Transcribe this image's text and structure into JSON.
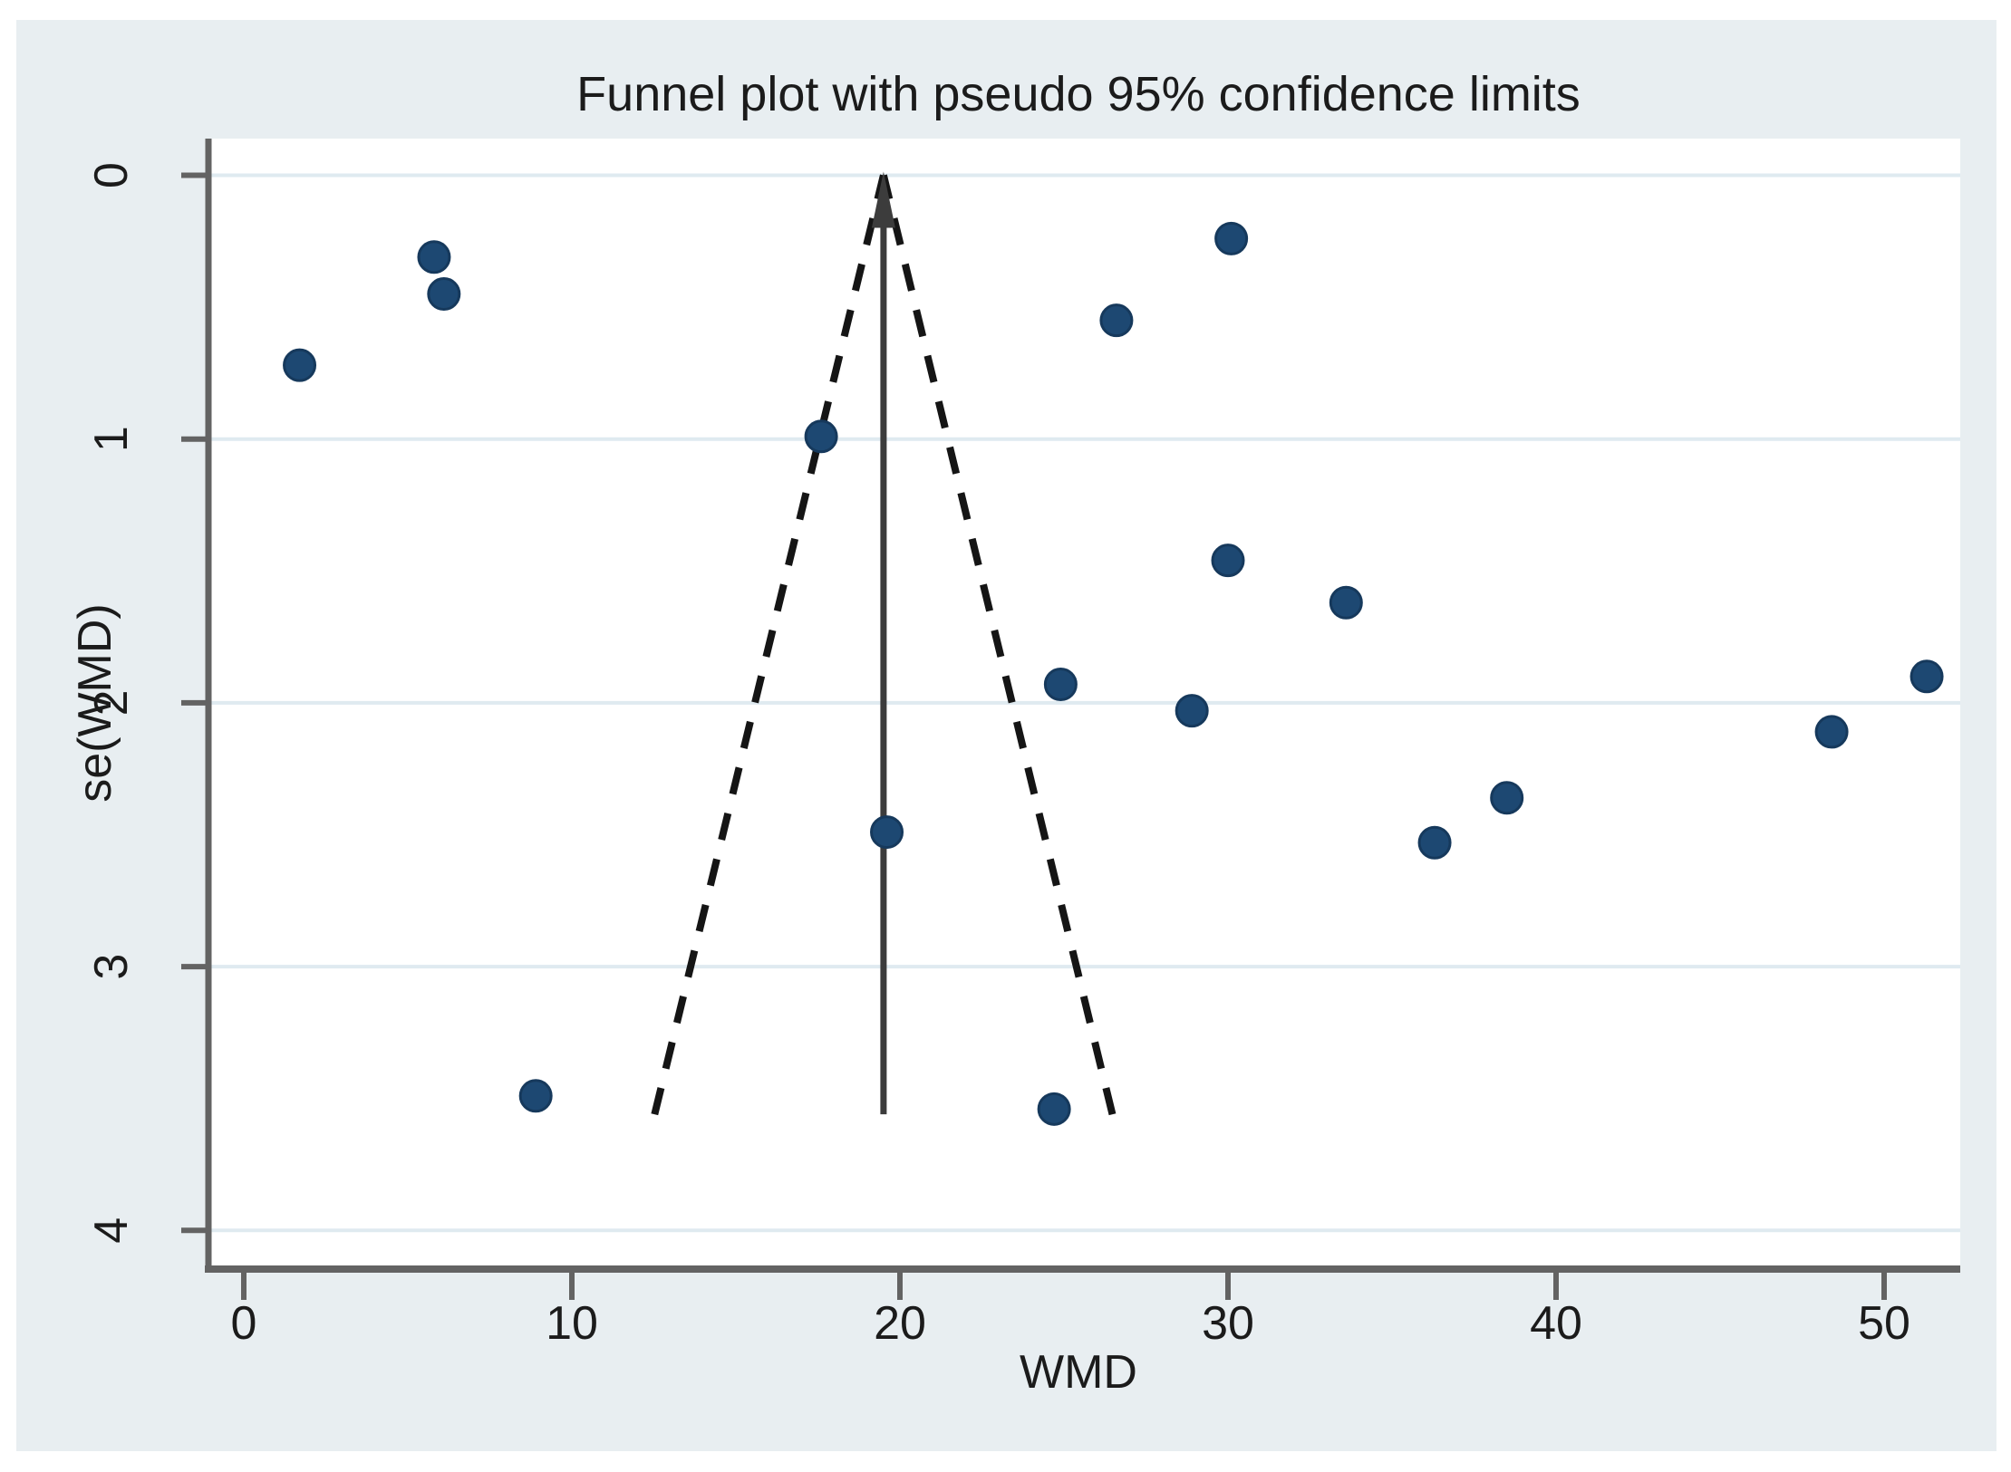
{
  "figure": {
    "title": "Funnel plot with pseudo 95% confidence limits"
  },
  "chart_data": {
    "type": "scatter",
    "title": "Funnel plot with pseudo 95% confidence limits",
    "xlabel": "WMD",
    "ylabel": "se(WMD)",
    "x_ticks": [
      0,
      10,
      20,
      30,
      40,
      50
    ],
    "y_ticks": [
      0,
      1,
      2,
      3,
      4
    ],
    "xlim": [
      -1.1,
      52.3
    ],
    "ylim_top_to_bottom": [
      -0.15,
      4.15
    ],
    "y_axis_reversed": true,
    "grid": "horizontal",
    "legend_position": "none",
    "points_wmd_se": [
      [
        1.7,
        0.72
      ],
      [
        5.8,
        0.31
      ],
      [
        6.1,
        0.45
      ],
      [
        17.6,
        0.99
      ],
      [
        26.6,
        0.55
      ],
      [
        30.1,
        0.24
      ],
      [
        30.0,
        1.46
      ],
      [
        33.6,
        1.62
      ],
      [
        24.9,
        1.93
      ],
      [
        28.9,
        2.03
      ],
      [
        51.3,
        1.9
      ],
      [
        48.4,
        2.11
      ],
      [
        38.5,
        2.36
      ],
      [
        36.3,
        2.53
      ],
      [
        19.6,
        2.49
      ],
      [
        8.9,
        3.49
      ],
      [
        24.7,
        3.54
      ]
    ],
    "pooled_effect_wmd": 19.5,
    "pseudo_ci": {
      "z": 1.96,
      "se_max": 3.56
    }
  },
  "colors": {
    "figure_background": "#e8eef1",
    "plot_background": "#ffffff",
    "gridline": "#dfeaf0",
    "axis": "#636363",
    "text": "#1b1b1b",
    "marker_fill": "#1d4872",
    "marker_edge": "#16395c",
    "ci_line": "#151515",
    "pooled_line": "#3c3c3c"
  }
}
